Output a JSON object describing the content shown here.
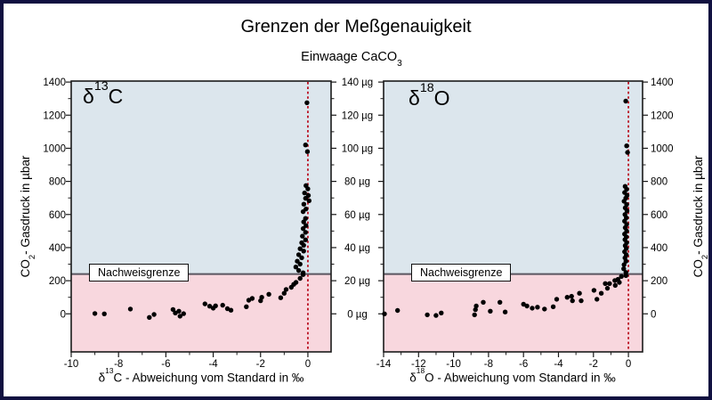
{
  "title": "Grenzen der Meßgenauigkeit",
  "subtitle": {
    "main": "Einwaage CaCO",
    "sub": "3"
  },
  "y_axis_label": {
    "main": "CO",
    "sub": "2",
    "rest": "- Gasdruck in µbar"
  },
  "detection_limit_label": "Nachweisgrenze",
  "colors": {
    "frame_border": "#101040",
    "above_limit_bg": "#dce6ed",
    "below_limit_bg": "#f8d7de",
    "zero_line": "#bb1122",
    "detection_line": "#5a5560",
    "axis_line": "#1a1a1a",
    "data_point": "#000000"
  },
  "weight_axis": {
    "unit": "µg",
    "labels": [
      {
        "value": 1400,
        "label": "140 µg"
      },
      {
        "value": 1200,
        "label": "120 µg"
      },
      {
        "value": 1000,
        "label": "100 µg"
      },
      {
        "value": 800,
        "label": "80 µg"
      },
      {
        "value": 600,
        "label": "60 µg"
      },
      {
        "value": 400,
        "label": "40 µg"
      },
      {
        "value": 200,
        "label": "20 µg"
      },
      {
        "value": 0,
        "label": "0 µg"
      }
    ]
  },
  "chart_data": [
    {
      "type": "scatter",
      "name": "delta-13C",
      "inner_title": {
        "symbol": "δ",
        "sup": "13",
        "rest": "C"
      },
      "xlabel": {
        "symbol": "δ",
        "sup": "13",
        "rest": "C - Abweichung vom Standard in ‰"
      },
      "ylabel": "CO2- Gasdruck in µbar",
      "xlim": [
        -10,
        0.98
      ],
      "ylim": [
        -230,
        1406
      ],
      "x_major_ticks": [
        -10,
        -8,
        -6,
        -4,
        -2,
        0
      ],
      "x_minor_ticks": [
        -9,
        -7,
        -5,
        -3,
        -1
      ],
      "y_major_ticks": [
        0,
        200,
        400,
        600,
        800,
        1000,
        1200,
        1400
      ],
      "y_minor_ticks": [
        100,
        300,
        500,
        700,
        900,
        1100,
        1300
      ],
      "zero_line_x": 0,
      "detection_limit_y": 240,
      "points": [
        [
          -0.04,
          1275
        ],
        [
          -0.1,
          1020
        ],
        [
          -0.02,
          980
        ],
        [
          -0.08,
          775
        ],
        [
          0.0,
          755
        ],
        [
          -0.14,
          730
        ],
        [
          0.02,
          715
        ],
        [
          -0.1,
          698
        ],
        [
          0.05,
          683
        ],
        [
          -0.17,
          662
        ],
        [
          -0.08,
          633
        ],
        [
          -0.2,
          617
        ],
        [
          -0.1,
          576
        ],
        [
          -0.18,
          555
        ],
        [
          -0.08,
          533
        ],
        [
          -0.2,
          515
        ],
        [
          -0.1,
          492
        ],
        [
          -0.23,
          469
        ],
        [
          -0.1,
          447
        ],
        [
          -0.26,
          429
        ],
        [
          -0.18,
          414
        ],
        [
          -0.33,
          393
        ],
        [
          -0.18,
          379
        ],
        [
          -0.39,
          357
        ],
        [
          -0.26,
          339
        ],
        [
          -0.45,
          318
        ],
        [
          -0.33,
          300
        ],
        [
          -0.51,
          283
        ],
        [
          -0.39,
          262
        ],
        [
          -0.2,
          248
        ],
        [
          -9.0,
          2
        ],
        [
          -8.6,
          0
        ],
        [
          -7.5,
          29
        ],
        [
          -6.7,
          -22
        ],
        [
          -6.5,
          -4
        ],
        [
          -5.7,
          26
        ],
        [
          -5.6,
          5
        ],
        [
          -5.45,
          16
        ],
        [
          -5.4,
          -14
        ],
        [
          -5.25,
          1
        ],
        [
          -4.35,
          60
        ],
        [
          -4.15,
          46
        ],
        [
          -4.0,
          34
        ],
        [
          -3.9,
          48
        ],
        [
          -3.6,
          52
        ],
        [
          -3.4,
          31
        ],
        [
          -3.25,
          22
        ],
        [
          -2.6,
          43
        ],
        [
          -2.5,
          82
        ],
        [
          -2.35,
          93
        ],
        [
          -2.0,
          79
        ],
        [
          -1.95,
          100
        ],
        [
          -1.65,
          118
        ],
        [
          -1.15,
          97
        ],
        [
          -1.0,
          124
        ],
        [
          -0.92,
          147
        ],
        [
          -0.7,
          160
        ],
        [
          -0.6,
          178
        ],
        [
          -0.5,
          190
        ],
        [
          -0.33,
          214
        ],
        [
          -0.2,
          237
        ]
      ]
    },
    {
      "type": "scatter",
      "name": "delta-18O",
      "inner_title": {
        "symbol": "δ",
        "sup": "18",
        "rest": "O"
      },
      "xlabel": {
        "symbol": "δ",
        "sup": "18",
        "rest": "O - Abweichung vom Standard in ‰"
      },
      "ylabel": "CO2- Gasdruck in µbar",
      "xlim": [
        -14,
        0.81
      ],
      "ylim": [
        -230,
        1406
      ],
      "x_major_ticks": [
        -14,
        -12,
        -10,
        -8,
        -6,
        -4,
        -2,
        0
      ],
      "x_minor_ticks": [
        -13,
        -11,
        -9,
        -7,
        -5,
        -3,
        -1
      ],
      "y_major_ticks": [
        0,
        200,
        400,
        600,
        800,
        1000,
        1200,
        1400
      ],
      "y_minor_ticks": [
        100,
        300,
        500,
        700,
        900,
        1100,
        1300
      ],
      "zero_line_x": 0,
      "detection_limit_y": 240,
      "points": [
        [
          -0.15,
          1285
        ],
        [
          -0.1,
          1015
        ],
        [
          -0.05,
          975
        ],
        [
          -0.19,
          770
        ],
        [
          -0.1,
          752
        ],
        [
          -0.22,
          733
        ],
        [
          -0.08,
          716
        ],
        [
          -0.15,
          699
        ],
        [
          -0.25,
          680
        ],
        [
          -0.1,
          660
        ],
        [
          -0.18,
          640
        ],
        [
          -0.08,
          622
        ],
        [
          -0.2,
          600
        ],
        [
          -0.12,
          580
        ],
        [
          -0.22,
          560
        ],
        [
          -0.1,
          540
        ],
        [
          -0.18,
          520
        ],
        [
          -0.1,
          500
        ],
        [
          -0.22,
          482
        ],
        [
          -0.12,
          465
        ],
        [
          -0.2,
          448
        ],
        [
          -0.1,
          430
        ],
        [
          -0.18,
          412
        ],
        [
          -0.12,
          395
        ],
        [
          -0.22,
          375
        ],
        [
          -0.12,
          356
        ],
        [
          -0.2,
          338
        ],
        [
          -0.14,
          318
        ],
        [
          -0.25,
          297
        ],
        [
          -0.27,
          272
        ],
        [
          -0.14,
          250
        ],
        [
          -13.95,
          0
        ],
        [
          -13.2,
          20
        ],
        [
          -11.5,
          -6
        ],
        [
          -11.0,
          -10
        ],
        [
          -10.7,
          5
        ],
        [
          -8.8,
          -6
        ],
        [
          -8.75,
          25
        ],
        [
          -8.7,
          47
        ],
        [
          -8.3,
          70
        ],
        [
          -7.9,
          16
        ],
        [
          -7.35,
          70
        ],
        [
          -7.05,
          11
        ],
        [
          -6.0,
          58
        ],
        [
          -5.8,
          47
        ],
        [
          -5.5,
          34
        ],
        [
          -5.2,
          40
        ],
        [
          -4.8,
          29
        ],
        [
          -4.3,
          43
        ],
        [
          -4.1,
          88
        ],
        [
          -3.5,
          100
        ],
        [
          -3.25,
          106
        ],
        [
          -3.2,
          79
        ],
        [
          -2.8,
          124
        ],
        [
          -2.7,
          79
        ],
        [
          -1.97,
          142
        ],
        [
          -1.8,
          88
        ],
        [
          -1.55,
          124
        ],
        [
          -1.32,
          183
        ],
        [
          -1.2,
          154
        ],
        [
          -1.08,
          183
        ],
        [
          -0.78,
          201
        ],
        [
          -0.75,
          172
        ],
        [
          -0.6,
          208
        ],
        [
          -0.52,
          190
        ],
        [
          -0.4,
          226
        ],
        [
          -0.14,
          231
        ]
      ]
    }
  ]
}
